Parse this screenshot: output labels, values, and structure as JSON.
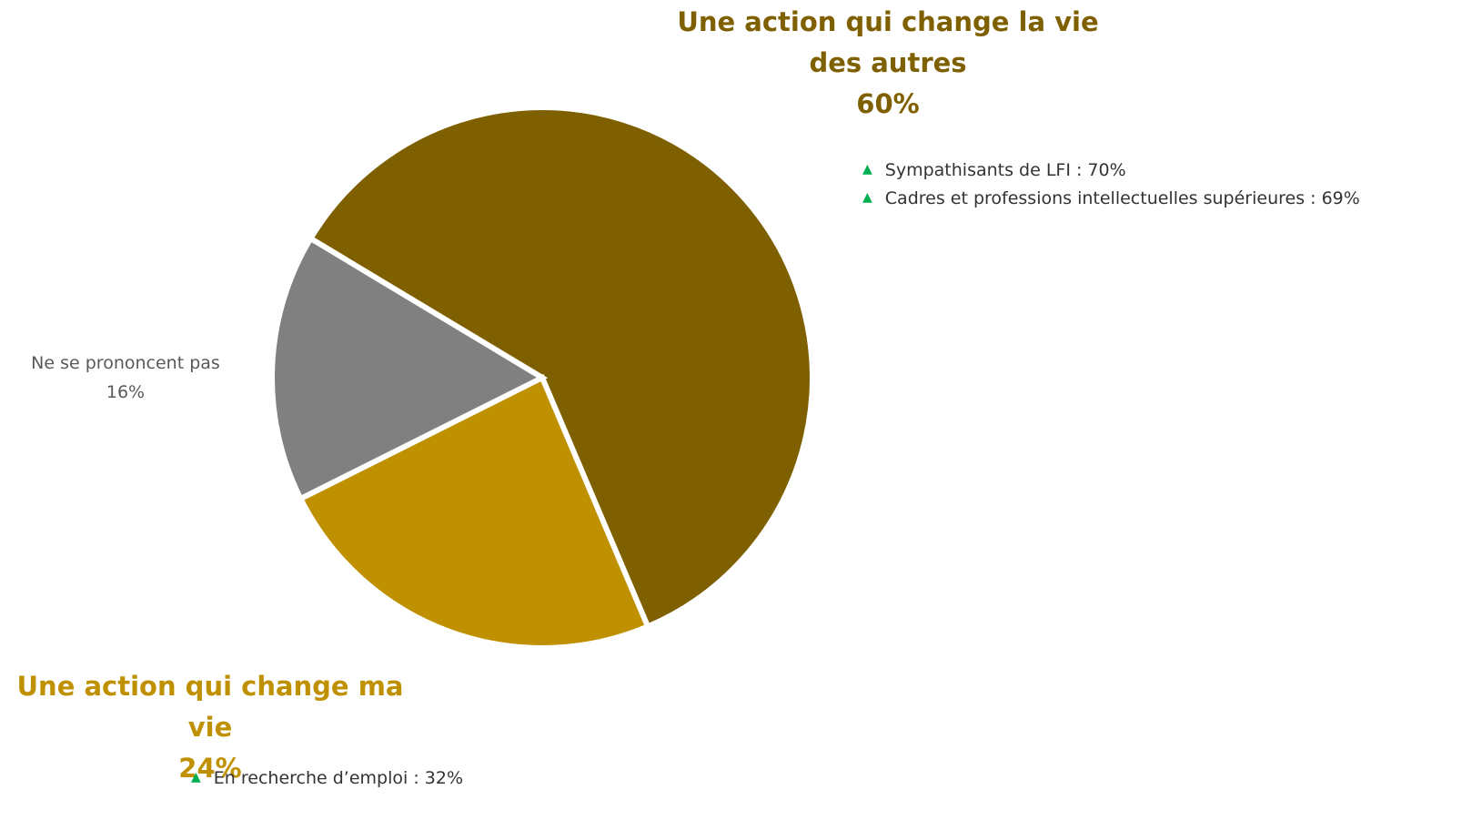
{
  "chart_data": {
    "type": "pie",
    "categories": [
      "Une action qui change la vie des autres",
      "Une action qui change ma vie",
      "Ne se prononcent pas"
    ],
    "values": [
      60,
      24,
      16
    ],
    "value_labels": [
      "60%",
      "24%",
      "16%"
    ],
    "colors": [
      "#7f6000",
      "#bf9000",
      "#808080"
    ],
    "notes": [
      [
        "Sympathisants de LFI : 70%",
        "Cadres et professions intellectuelles supérieures : 69%"
      ],
      [
        "En recherche d’emploi : 32%"
      ],
      []
    ]
  }
}
